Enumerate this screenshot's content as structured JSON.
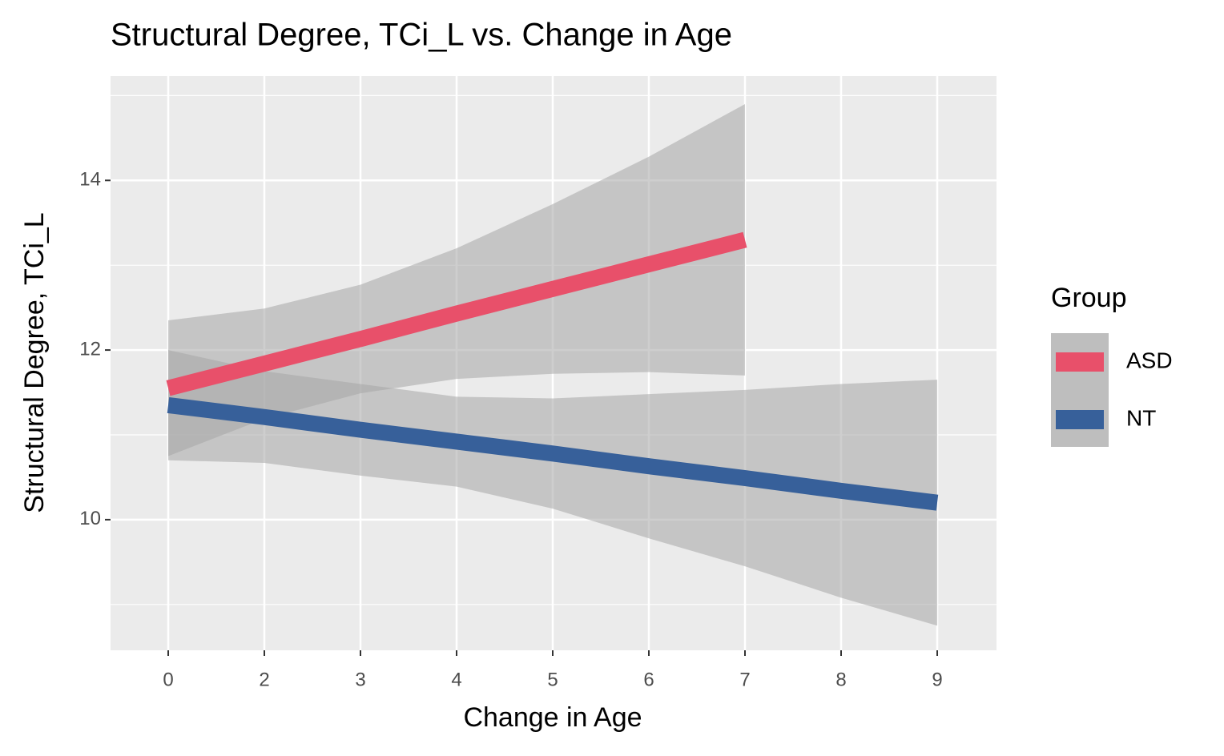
{
  "chart_data": {
    "type": "line",
    "title": "Structural Degree, TCi_L vs. Change in Age",
    "x_label": "Change in Age",
    "y_label": "Structural Degree, TCi_L",
    "categories": [
      "0",
      "2",
      "3",
      "4",
      "5",
      "6",
      "7",
      "8",
      "9"
    ],
    "series": [
      {
        "name": "ASD",
        "color": "#e8506a",
        "values": [
          11.55,
          11.84,
          12.13,
          12.43,
          12.72,
          13.01,
          13.3,
          null,
          null
        ],
        "lower": [
          10.75,
          11.19,
          11.49,
          11.66,
          11.72,
          11.74,
          11.7,
          null,
          null
        ],
        "upper": [
          12.35,
          12.49,
          12.77,
          13.2,
          13.72,
          14.28,
          14.9,
          null,
          null
        ]
      },
      {
        "name": "NT",
        "color": "#37609a",
        "values": [
          11.35,
          11.21,
          11.06,
          10.92,
          10.78,
          10.63,
          10.49,
          10.34,
          10.2
        ],
        "lower": [
          10.7,
          10.67,
          10.52,
          10.39,
          10.13,
          9.78,
          9.45,
          9.08,
          8.75
        ],
        "upper": [
          12.0,
          11.75,
          11.6,
          11.45,
          11.43,
          11.48,
          11.53,
          11.6,
          11.65
        ]
      }
    ],
    "ribbon_color": "#a6a6a6",
    "ylim": [
      8.46,
      15.23
    ],
    "yticks": [
      10,
      12,
      14
    ],
    "yminor": [
      9,
      11,
      13,
      15
    ],
    "grid": true,
    "legend_title": "Group",
    "legend_position": "right"
  }
}
